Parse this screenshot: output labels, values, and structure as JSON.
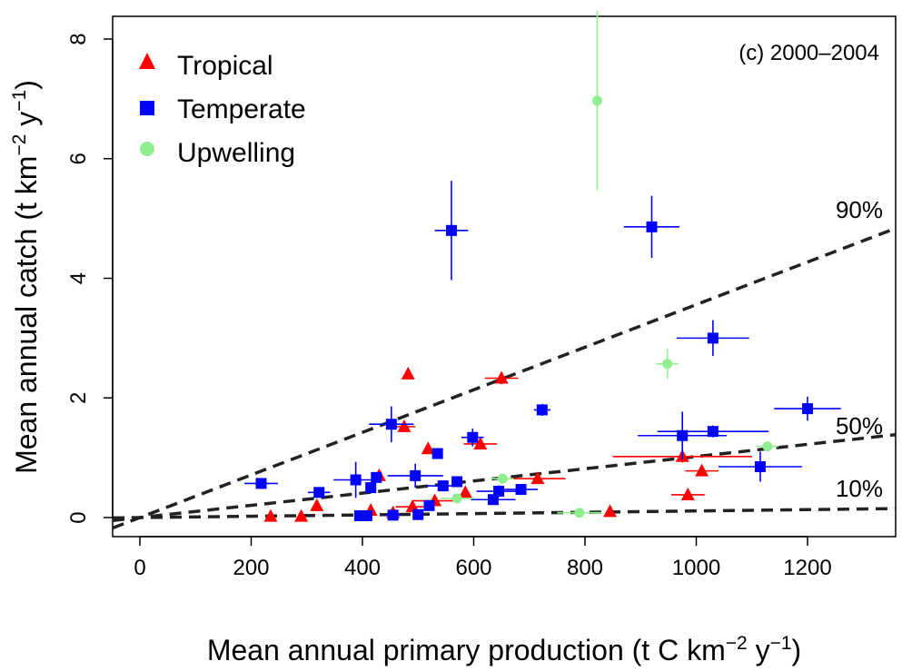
{
  "chart_data": {
    "type": "scatter",
    "panel_label": "(c) 2000–2004",
    "xlabel": "Mean annual primary production (t C km",
    "xlabel_sup1": "−2",
    "xlabel_mid": " y",
    "xlabel_sup2": "−1",
    "xlabel_end": ")",
    "ylabel": "Mean annual catch (t  km",
    "ylabel_sup1": "−2",
    "ylabel_mid": " y",
    "ylabel_sup2": "−1",
    "ylabel_end": ")",
    "xlim": [
      -50,
      1350
    ],
    "ylim": [
      -0.35,
      8.4
    ],
    "xticks": [
      0,
      200,
      400,
      600,
      800,
      1000,
      1200
    ],
    "yticks": [
      0,
      2,
      4,
      6,
      8
    ],
    "legend_position": "top-left",
    "series": [
      {
        "name": "Tropical",
        "marker": "triangle",
        "color": "#ff0000",
        "points": [
          {
            "x": 235,
            "y": 0.02,
            "xerr": 0,
            "yerr": 0
          },
          {
            "x": 290,
            "y": 0.02,
            "xerr": 0,
            "yerr": 0
          },
          {
            "x": 318,
            "y": 0.2,
            "xerr": 0,
            "yerr": 0
          },
          {
            "x": 415,
            "y": 0.12,
            "xerr": 0,
            "yerr": 0
          },
          {
            "x": 430,
            "y": 0.7,
            "xerr": 0,
            "yerr": 0
          },
          {
            "x": 455,
            "y": 0.08,
            "xerr": 0,
            "yerr": 0
          },
          {
            "x": 475,
            "y": 1.52,
            "xerr": 20,
            "yerr": 0
          },
          {
            "x": 482,
            "y": 2.4,
            "xerr": 0,
            "yerr": 0
          },
          {
            "x": 490,
            "y": 0.18,
            "xerr": 30,
            "yerr": 0.05
          },
          {
            "x": 518,
            "y": 1.15,
            "xerr": 0,
            "yerr": 0
          },
          {
            "x": 530,
            "y": 0.28,
            "xerr": 40,
            "yerr": 0
          },
          {
            "x": 585,
            "y": 0.42,
            "xerr": 0,
            "yerr": 0
          },
          {
            "x": 612,
            "y": 1.23,
            "xerr": 30,
            "yerr": 0
          },
          {
            "x": 650,
            "y": 2.33,
            "xerr": 30,
            "yerr": 0.1
          },
          {
            "x": 715,
            "y": 0.65,
            "xerr": 50,
            "yerr": 0
          },
          {
            "x": 845,
            "y": 0.1,
            "xerr": 0,
            "yerr": 0
          },
          {
            "x": 975,
            "y": 1.02,
            "xerr": 125,
            "yerr": 0.1
          },
          {
            "x": 985,
            "y": 0.38,
            "xerr": 30,
            "yerr": 0
          },
          {
            "x": 1010,
            "y": 0.78,
            "xerr": 30,
            "yerr": 0.06
          }
        ]
      },
      {
        "name": "Temperate",
        "marker": "square",
        "color": "#0000ff",
        "points": [
          {
            "x": 218,
            "y": 0.57,
            "xerr": 30,
            "yerr": 0.08
          },
          {
            "x": 322,
            "y": 0.42,
            "xerr": 20,
            "yerr": 0.08
          },
          {
            "x": 388,
            "y": 0.63,
            "xerr": 40,
            "yerr": 0.3
          },
          {
            "x": 395,
            "y": 0.03,
            "xerr": 0,
            "yerr": 0
          },
          {
            "x": 408,
            "y": 0.03,
            "xerr": 0,
            "yerr": 0
          },
          {
            "x": 415,
            "y": 0.5,
            "xerr": 0,
            "yerr": 0
          },
          {
            "x": 425,
            "y": 0.67,
            "xerr": 0,
            "yerr": 0.08
          },
          {
            "x": 452,
            "y": 1.56,
            "xerr": 40,
            "yerr": 0.3
          },
          {
            "x": 455,
            "y": 0.04,
            "xerr": 15,
            "yerr": 0
          },
          {
            "x": 495,
            "y": 0.7,
            "xerr": 50,
            "yerr": 0.2
          },
          {
            "x": 500,
            "y": 0.05,
            "xerr": 0,
            "yerr": 0
          },
          {
            "x": 520,
            "y": 0.2,
            "xerr": 0,
            "yerr": 0
          },
          {
            "x": 535,
            "y": 1.07,
            "xerr": 0,
            "yerr": 0
          },
          {
            "x": 545,
            "y": 0.53,
            "xerr": 30,
            "yerr": 0
          },
          {
            "x": 560,
            "y": 4.8,
            "xerr": 30,
            "yerr": 0.83
          },
          {
            "x": 570,
            "y": 0.6,
            "xerr": 0,
            "yerr": 0.07
          },
          {
            "x": 598,
            "y": 1.34,
            "xerr": 20,
            "yerr": 0.15
          },
          {
            "x": 635,
            "y": 0.3,
            "xerr": 40,
            "yerr": 0
          },
          {
            "x": 645,
            "y": 0.44,
            "xerr": 40,
            "yerr": 0.1
          },
          {
            "x": 685,
            "y": 0.47,
            "xerr": 30,
            "yerr": 0
          },
          {
            "x": 723,
            "y": 1.8,
            "xerr": 15,
            "yerr": 0.1
          },
          {
            "x": 920,
            "y": 4.86,
            "xerr": 50,
            "yerr": 0.52
          },
          {
            "x": 975,
            "y": 1.37,
            "xerr": 80,
            "yerr": 0.4
          },
          {
            "x": 1030,
            "y": 3.0,
            "xerr": 65,
            "yerr": 0.3
          },
          {
            "x": 1030,
            "y": 1.44,
            "xerr": 100,
            "yerr": 0.1
          },
          {
            "x": 1115,
            "y": 0.85,
            "xerr": 75,
            "yerr": 0.25
          },
          {
            "x": 1200,
            "y": 1.82,
            "xerr": 60,
            "yerr": 0.2
          }
        ]
      },
      {
        "name": "Upwelling",
        "marker": "circle",
        "color": "#90ee90",
        "points": [
          {
            "x": 570,
            "y": 0.32,
            "xerr": 30,
            "yerr": 0
          },
          {
            "x": 652,
            "y": 0.65,
            "xerr": 20,
            "yerr": 0
          },
          {
            "x": 790,
            "y": 0.08,
            "xerr": 40,
            "yerr": 0
          },
          {
            "x": 822,
            "y": 6.97,
            "xerr": 0,
            "yerr": 1.5
          },
          {
            "x": 948,
            "y": 2.57,
            "xerr": 20,
            "yerr": 0.25
          },
          {
            "x": 1128,
            "y": 1.19,
            "xerr": 20,
            "yerr": 0
          }
        ]
      }
    ],
    "quantile_lines": [
      {
        "label": "90%",
        "slope": 0.00356
      },
      {
        "label": "50%",
        "slope": 0.00102
      },
      {
        "label": "10%",
        "slope": 0.00011
      }
    ]
  }
}
